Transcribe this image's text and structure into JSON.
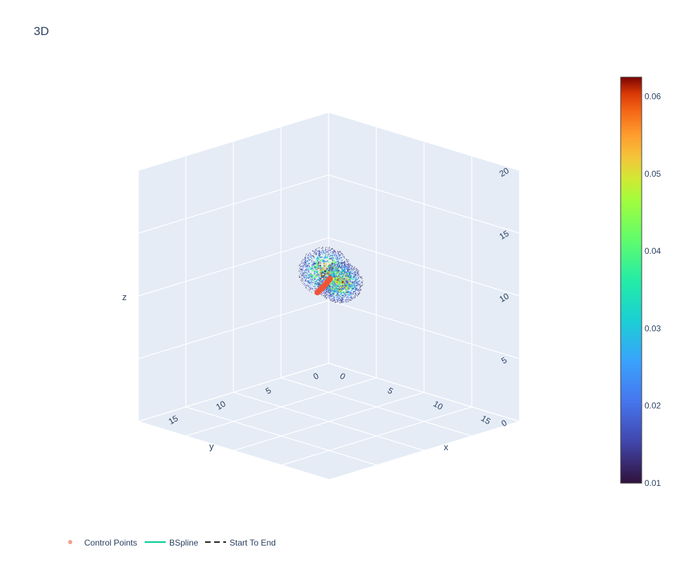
{
  "title": "3D",
  "chart_data": {
    "type": "scatter3d",
    "title": "3D",
    "axes": {
      "x": {
        "label": "x",
        "range": [
          0,
          20
        ],
        "ticks": [
          "0",
          "5",
          "10",
          "15"
        ]
      },
      "y": {
        "label": "y",
        "range": [
          0,
          20
        ],
        "ticks": [
          "0",
          "5",
          "10",
          "15"
        ]
      },
      "z": {
        "label": "z",
        "range": [
          0,
          20
        ],
        "ticks": [
          "0",
          "5",
          "10",
          "15",
          "20"
        ]
      }
    },
    "colorbar": {
      "colorscale": "Turbo",
      "range": [
        0.01,
        0.0625
      ],
      "ticks": [
        "0.01",
        "0.02",
        "0.03",
        "0.04",
        "0.05",
        "0.06"
      ]
    },
    "density_cloud": {
      "approx_center": [
        10,
        10,
        10
      ],
      "approx_radius": 2.5,
      "point_count_shown": 2600
    },
    "series": [
      {
        "name": "Control Points",
        "mode": "markers",
        "color": "#ef553b"
      },
      {
        "name": "BSpline",
        "mode": "lines",
        "color": "#00cc96"
      },
      {
        "name": "Start To End",
        "mode": "lines",
        "dash": "dash",
        "color": "#222222"
      }
    ],
    "legend_placement": "bottom-left",
    "grid": true
  }
}
